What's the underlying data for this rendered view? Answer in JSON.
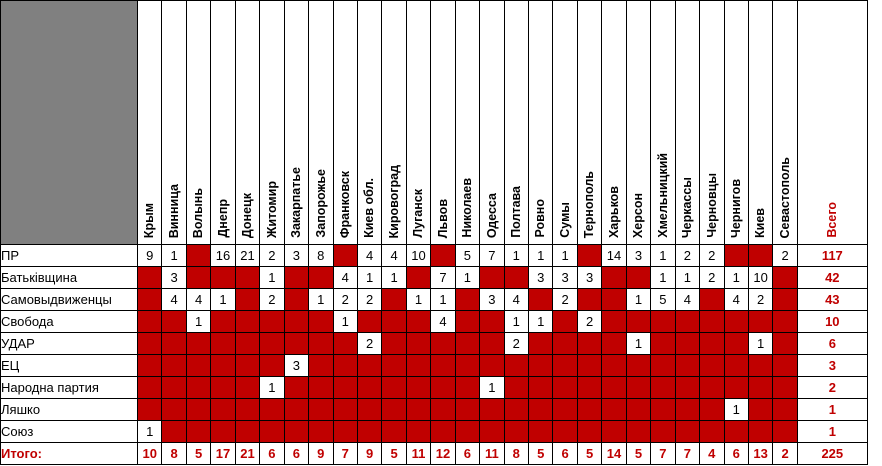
{
  "corner": "",
  "regions": [
    "Крым",
    "Винница",
    "Волынь",
    "Днепр",
    "Донецк",
    "Житомир",
    "Закарпатье",
    "Запорожье",
    "Франковск",
    "Киев обл.",
    "Кировоград",
    "Луганск",
    "Львов",
    "Николаев",
    "Одесса",
    "Полтава",
    "Ровно",
    "Сумы",
    "Тернополь",
    "Харьков",
    "Херсон",
    "Хмельницкий",
    "Черкассы",
    "Черновцы",
    "Чернигов",
    "Киев",
    "Севастополь"
  ],
  "total_header": "Всего",
  "parties": [
    {
      "name": "ПР",
      "values": [
        9,
        1,
        null,
        16,
        21,
        2,
        3,
        8,
        null,
        4,
        4,
        10,
        null,
        5,
        7,
        1,
        1,
        1,
        null,
        14,
        3,
        1,
        2,
        2,
        null,
        null,
        2
      ],
      "total": "117"
    },
    {
      "name": "Батьківщина",
      "values": [
        null,
        3,
        null,
        null,
        null,
        1,
        null,
        null,
        4,
        1,
        1,
        null,
        7,
        1,
        null,
        null,
        3,
        3,
        3,
        null,
        null,
        1,
        1,
        2,
        1,
        10,
        null
      ],
      "total": "42"
    },
    {
      "name": "Самовыдвиженцы",
      "values": [
        null,
        4,
        4,
        1,
        null,
        2,
        null,
        1,
        2,
        2,
        null,
        1,
        1,
        null,
        3,
        4,
        null,
        2,
        null,
        null,
        1,
        5,
        4,
        null,
        4,
        2,
        null
      ],
      "total": "43"
    },
    {
      "name": "Свобода",
      "values": [
        null,
        null,
        1,
        null,
        null,
        null,
        null,
        null,
        1,
        null,
        null,
        null,
        4,
        null,
        null,
        1,
        1,
        null,
        2,
        null,
        null,
        null,
        null,
        null,
        null,
        null,
        null
      ],
      "total": "10"
    },
    {
      "name": "УДАР",
      "values": [
        null,
        null,
        null,
        null,
        null,
        null,
        null,
        null,
        null,
        2,
        null,
        null,
        null,
        null,
        null,
        2,
        null,
        null,
        null,
        null,
        1,
        null,
        null,
        null,
        null,
        1,
        null
      ],
      "total": "6"
    },
    {
      "name": "ЕЦ",
      "values": [
        null,
        null,
        null,
        null,
        null,
        null,
        3,
        null,
        null,
        null,
        null,
        null,
        null,
        null,
        null,
        null,
        null,
        null,
        null,
        null,
        null,
        null,
        null,
        null,
        null,
        null,
        null
      ],
      "total": "3"
    },
    {
      "name": "Народна партия",
      "values": [
        null,
        null,
        null,
        null,
        null,
        1,
        null,
        null,
        null,
        null,
        null,
        null,
        null,
        null,
        1,
        null,
        null,
        null,
        null,
        null,
        null,
        null,
        null,
        null,
        null,
        null,
        null
      ],
      "total": "2"
    },
    {
      "name": "Ляшко",
      "values": [
        null,
        null,
        null,
        null,
        null,
        null,
        null,
        null,
        null,
        null,
        null,
        null,
        null,
        null,
        null,
        null,
        null,
        null,
        null,
        null,
        null,
        null,
        null,
        null,
        1,
        null,
        null
      ],
      "total": "1"
    },
    {
      "name": "Союз",
      "values": [
        1,
        null,
        null,
        null,
        null,
        null,
        null,
        null,
        null,
        null,
        null,
        null,
        null,
        null,
        null,
        null,
        null,
        null,
        null,
        null,
        null,
        null,
        null,
        null,
        null,
        null,
        null
      ],
      "total": "1"
    }
  ],
  "itogo": {
    "label": "Итого:",
    "values": [
      "10",
      "8",
      "5",
      "17",
      "21",
      "6",
      "6",
      "9",
      "7",
      "9",
      "5",
      "11",
      "12",
      "6",
      "11",
      "8",
      "5",
      "6",
      "5",
      "14",
      "5",
      "7",
      "7",
      "4",
      "6",
      "13",
      "2"
    ],
    "total": "225"
  },
  "colors": {
    "red": "#c00000",
    "gray": "#808080",
    "white": "#ffffff"
  }
}
